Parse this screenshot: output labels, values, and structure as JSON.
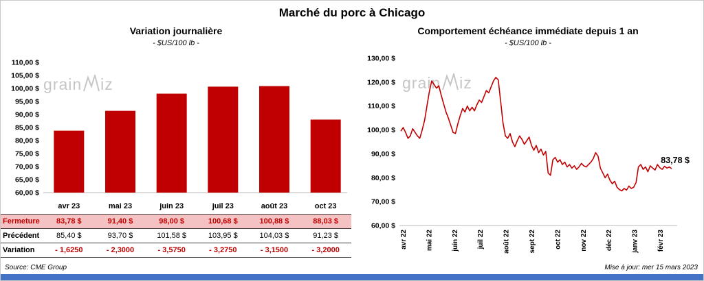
{
  "title": "Marché du porc à Chicago",
  "watermark": {
    "pre": "grain",
    "post": "iz"
  },
  "colors": {
    "bar": "#C00000",
    "line": "#C00000",
    "highlight_row_bg": "#F4C2C2",
    "red_text": "#C00000",
    "bottom_bar": "#4472C4",
    "watermark": "#C6C6C6"
  },
  "chart_data": [
    {
      "type": "bar",
      "title": "Variation journalière",
      "subtitle": "- $US/100 lb -",
      "categories": [
        "avr 23",
        "mai 23",
        "juin 23",
        "juil 23",
        "août 23",
        "oct 23"
      ],
      "values": [
        83.78,
        91.4,
        98.0,
        100.68,
        100.88,
        88.03
      ],
      "ylim": [
        60,
        110
      ],
      "y_tick_step": 5,
      "y_tick_labels": [
        "110,00 $",
        "105,00 $",
        "100,00 $",
        "95,00 $",
        "90,00 $",
        "85,00 $",
        "80,00 $",
        "75,00 $",
        "70,00 $",
        "65,00 $",
        "60,00 $"
      ],
      "grid": false,
      "legend": "none"
    },
    {
      "type": "line",
      "title": "Comportement échéance immédiate depuis 1 an",
      "subtitle": "- $US/100 lb -",
      "ylim": [
        60,
        130
      ],
      "y_tick_step": 10,
      "y_tick_labels": [
        "130,00 $",
        "120,00 $",
        "110,00 $",
        "100,00 $",
        "90,00 $",
        "80,00 $",
        "70,00 $",
        "60,00 $"
      ],
      "x_tick_labels": [
        "avr 22",
        "mai 22",
        "juin 22",
        "juil 22",
        "août 22",
        "sept 22",
        "oct 22",
        "nov 22",
        "déc 22",
        "janv 23",
        "févr 23"
      ],
      "end_label": "83,78 $",
      "grid": false,
      "legend": "none",
      "values": [
        99.5,
        101,
        99,
        96.5,
        97.5,
        100.5,
        99,
        97.5,
        96.5,
        100,
        104,
        110,
        116,
        120.5,
        119,
        117.5,
        118.5,
        114.5,
        111,
        107.5,
        105,
        102,
        99,
        98.5,
        102.5,
        106,
        109,
        107.5,
        110,
        108,
        109.5,
        108,
        110.5,
        112.5,
        111.5,
        114,
        116.5,
        115.5,
        118,
        120.5,
        122,
        121,
        112,
        103,
        97.5,
        96.5,
        98.5,
        95,
        93,
        95.5,
        97.5,
        96,
        94,
        95.5,
        97,
        93.5,
        91.5,
        93.5,
        90.5,
        92,
        89.5,
        91,
        82,
        81,
        87.5,
        88.5,
        86.5,
        87.5,
        85.5,
        86.5,
        84.5,
        85.5,
        84,
        85,
        83.5,
        84.5,
        86,
        85,
        84.5,
        85.5,
        86.5,
        88,
        90.5,
        89,
        84,
        82,
        80,
        81.5,
        79,
        77.5,
        78.5,
        76,
        75,
        74.5,
        75.5,
        74.8,
        76.5,
        75.5,
        76,
        78,
        84.5,
        85.5,
        83.5,
        84.5,
        82.5,
        85,
        84,
        83.2,
        85.5,
        84.2,
        83.5,
        84.8,
        84,
        84.5,
        83.78
      ]
    }
  ],
  "table": {
    "header": [
      "avr 23",
      "mai 23",
      "juin 23",
      "juil 23",
      "août 23",
      "oct 23"
    ],
    "rows": [
      {
        "label": "Fermeture",
        "style": "highlight",
        "values": [
          "83,78  $",
          "91,40  $",
          "98,00  $",
          "100,68  $",
          "100,88  $",
          "88,03  $"
        ]
      },
      {
        "label": "Précédent",
        "style": "normal",
        "values": [
          "85,40  $",
          "93,70  $",
          "101,58  $",
          "103,95  $",
          "104,03  $",
          "91,23  $"
        ]
      },
      {
        "label": "Variation",
        "style": "red",
        "values": [
          "- 1,6250",
          "- 2,3000",
          "- 3,5750",
          "- 3,2750",
          "- 3,1500",
          "- 3,2000"
        ]
      }
    ]
  },
  "footer": {
    "source": "Source: CME Group",
    "updated": "Mise à jour: mer 15 mars 2023"
  }
}
